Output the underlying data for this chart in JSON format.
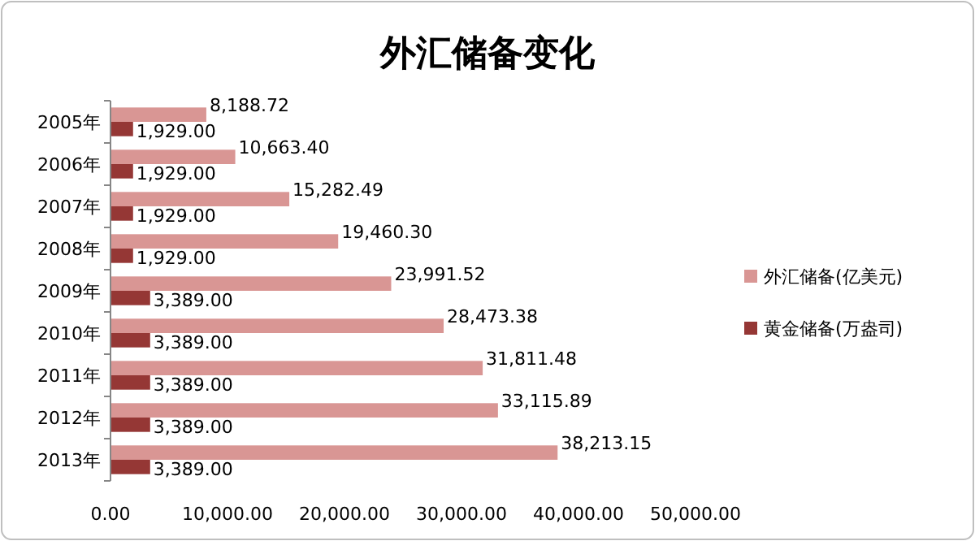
{
  "chart_data": {
    "type": "bar",
    "orientation": "horizontal",
    "title": "外汇储备变化",
    "categories": [
      "2005年",
      "2006年",
      "2007年",
      "2008年",
      "2009年",
      "2010年",
      "2011年",
      "2012年",
      "2013年"
    ],
    "series": [
      {
        "name": "外汇储备(亿美元)",
        "color": "#d99694",
        "values": [
          8188.72,
          10663.4,
          15282.49,
          19460.3,
          23991.52,
          28473.38,
          31811.48,
          33115.89,
          38213.15
        ],
        "value_labels": [
          "8,188.72",
          "10,663.40",
          "15,282.49",
          "19,460.30",
          "23,991.52",
          "28,473.38",
          "31,811.48",
          "33,115.89",
          "38,213.15"
        ]
      },
      {
        "name": "黄金储备(万盎司)",
        "color": "#953735",
        "values": [
          1929.0,
          1929.0,
          1929.0,
          1929.0,
          3389.0,
          3389.0,
          3389.0,
          3389.0,
          3389.0
        ],
        "value_labels": [
          "1,929.00",
          "1,929.00",
          "1,929.00",
          "1,929.00",
          "3,389.00",
          "3,389.00",
          "3,389.00",
          "3,389.00",
          "3,389.00"
        ]
      }
    ],
    "xlim": [
      0,
      50000
    ],
    "xticks": [
      {
        "value": 0,
        "label": "0.00"
      },
      {
        "value": 10000,
        "label": "10,000.00"
      },
      {
        "value": 20000,
        "label": "20,000.00"
      },
      {
        "value": 30000,
        "label": "30,000.00"
      },
      {
        "value": 40000,
        "label": "40,000.00"
      },
      {
        "value": 50000,
        "label": "50,000.00"
      }
    ],
    "legend": "right"
  }
}
